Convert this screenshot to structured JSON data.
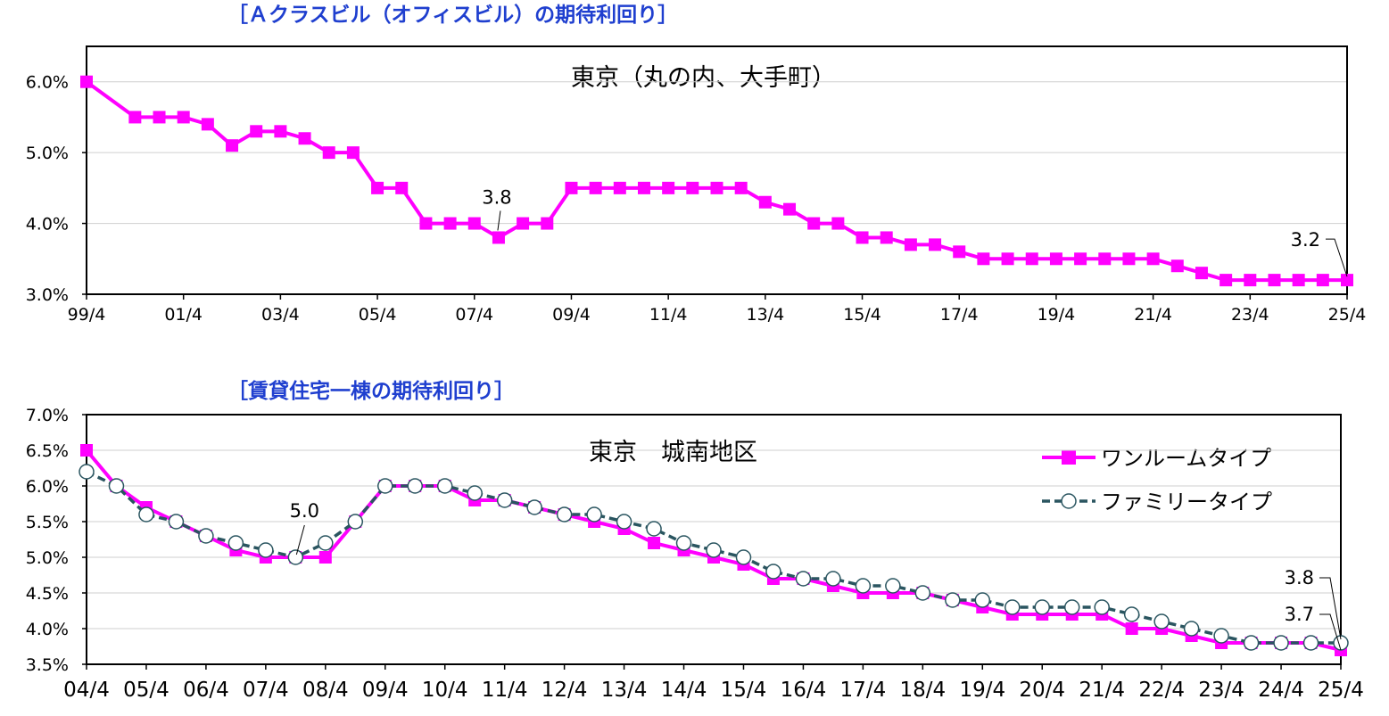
{
  "chart_data": [
    {
      "type": "line",
      "title": "［Ａクラスビル（オフィスビル）の期待利回り］",
      "inner_title": "東京（丸の内、大手町）",
      "xlabel": "",
      "ylabel": "",
      "ylim": [
        3.0,
        6.5
      ],
      "y_ticks": [
        "3.0%",
        "4.0%",
        "5.0%",
        "6.0%"
      ],
      "x_ticks": [
        "99/4",
        "01/4",
        "03/4",
        "05/4",
        "07/4",
        "09/4",
        "11/4",
        "13/4",
        "15/4",
        "17/4",
        "19/4",
        "21/4",
        "23/4",
        "25/4"
      ],
      "grid": true,
      "series": [
        {
          "color": "#ff00ff",
          "marker": "square",
          "x": [
            "99/4",
            "00/4",
            "00/10",
            "01/4",
            "01/10",
            "02/4",
            "02/10",
            "03/4",
            "03/10",
            "04/4",
            "04/10",
            "05/4",
            "05/10",
            "06/4",
            "06/10",
            "07/4",
            "07/10",
            "08/4",
            "08/10",
            "09/4",
            "09/10",
            "10/4",
            "10/10",
            "11/4",
            "11/10",
            "12/4",
            "12/10",
            "13/4",
            "13/10",
            "14/4",
            "14/10",
            "15/4",
            "15/10",
            "16/4",
            "16/10",
            "17/4",
            "17/10",
            "18/4",
            "18/10",
            "19/4",
            "19/10",
            "20/4",
            "20/10",
            "21/4",
            "21/10",
            "22/4",
            "22/10",
            "23/4",
            "23/10",
            "24/4",
            "24/10",
            "25/4"
          ],
          "values": [
            6.0,
            5.5,
            5.5,
            5.5,
            5.4,
            5.1,
            5.3,
            5.3,
            5.2,
            5.0,
            5.0,
            4.5,
            4.5,
            4.0,
            4.0,
            4.0,
            3.8,
            4.0,
            4.0,
            4.5,
            4.5,
            4.5,
            4.5,
            4.5,
            4.5,
            4.5,
            4.5,
            4.3,
            4.2,
            4.0,
            4.0,
            3.8,
            3.8,
            3.7,
            3.7,
            3.6,
            3.5,
            3.5,
            3.5,
            3.5,
            3.5,
            3.5,
            3.5,
            3.5,
            3.4,
            3.3,
            3.2,
            3.2,
            3.2,
            3.2,
            3.2,
            3.2
          ]
        }
      ],
      "annotations": [
        {
          "x": "07/10",
          "label": "3.8"
        },
        {
          "x": "25/4",
          "label": "3.2"
        }
      ]
    },
    {
      "type": "line",
      "title": "［賃貸住宅一棟の期待利回り］",
      "inner_title": "東京　城南地区",
      "xlabel": "",
      "ylabel": "",
      "ylim": [
        3.5,
        7.0
      ],
      "y_ticks": [
        "3.5%",
        "4.0%",
        "4.5%",
        "5.0%",
        "5.5%",
        "6.0%",
        "6.5%",
        "7.0%"
      ],
      "x_ticks": [
        "04/4",
        "05/4",
        "06/4",
        "07/4",
        "08/4",
        "09/4",
        "10/4",
        "11/4",
        "12/4",
        "13/4",
        "14/4",
        "15/4",
        "16/4",
        "17/4",
        "18/4",
        "19/4",
        "20/4",
        "21/4",
        "22/4",
        "23/4",
        "24/4",
        "25/4"
      ],
      "grid": true,
      "legend": "top-right",
      "series": [
        {
          "name": "ワンルームタイプ",
          "color": "#ff00ff",
          "marker": "square",
          "values": [
            6.5,
            6.0,
            5.7,
            5.5,
            5.3,
            5.1,
            5.0,
            5.0,
            5.0,
            5.5,
            6.0,
            6.0,
            6.0,
            5.8,
            5.8,
            5.7,
            5.6,
            5.5,
            5.4,
            5.2,
            5.1,
            5.0,
            4.9,
            4.7,
            4.7,
            4.6,
            4.5,
            4.5,
            4.5,
            4.4,
            4.3,
            4.2,
            4.2,
            4.2,
            4.2,
            4.0,
            4.0,
            3.9,
            3.8,
            3.8,
            3.8,
            3.8,
            3.7
          ]
        },
        {
          "name": "ファミリータイプ",
          "color": "#2a5560",
          "marker": "circle",
          "values": [
            6.2,
            6.0,
            5.6,
            5.5,
            5.3,
            5.2,
            5.1,
            5.0,
            5.2,
            5.5,
            6.0,
            6.0,
            6.0,
            5.9,
            5.8,
            5.7,
            5.6,
            5.6,
            5.5,
            5.4,
            5.2,
            5.1,
            5.0,
            4.8,
            4.7,
            4.7,
            4.6,
            4.6,
            4.5,
            4.4,
            4.4,
            4.3,
            4.3,
            4.3,
            4.3,
            4.2,
            4.1,
            4.0,
            3.9,
            3.8,
            3.8,
            3.8,
            3.8
          ]
        }
      ],
      "annotations": [
        {
          "x": "07/10",
          "label": "5.0"
        },
        {
          "x": "25/4",
          "label": "3.8"
        },
        {
          "x": "25/4",
          "label": "3.7"
        }
      ]
    }
  ]
}
